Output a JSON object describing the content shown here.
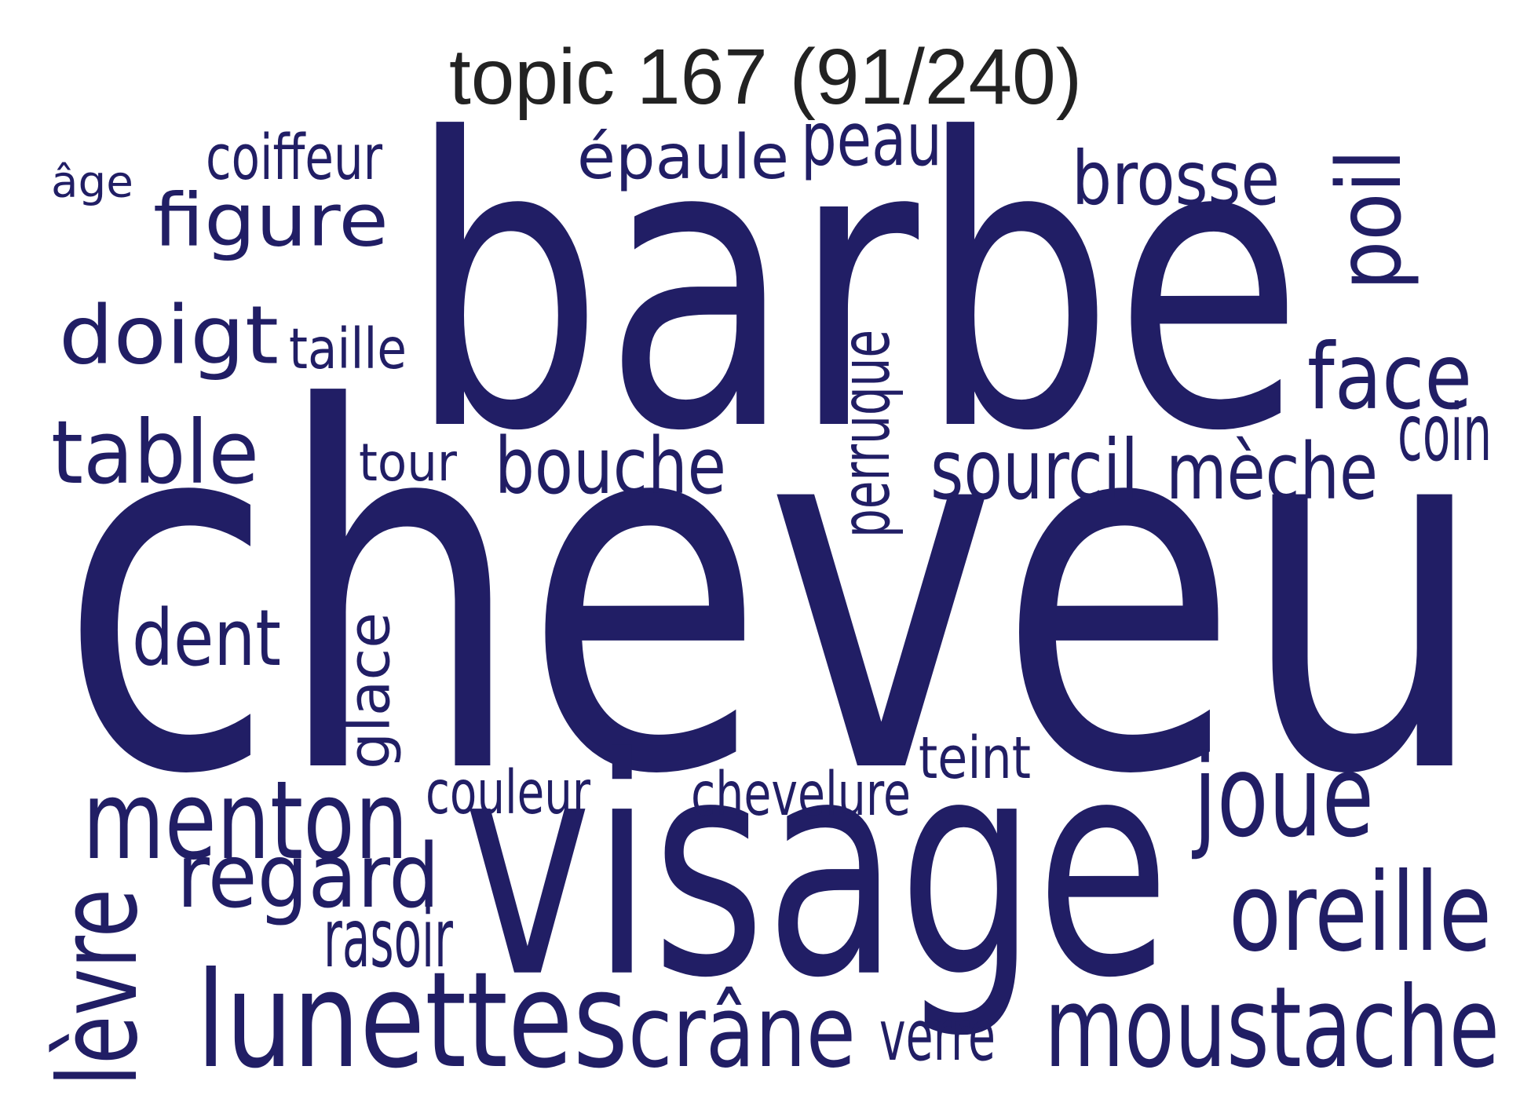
{
  "title": "topic 167 (91/240)",
  "color": "#211e65",
  "words": [
    {
      "text": "cheveu",
      "rotated": false
    },
    {
      "text": "barbe",
      "rotated": false
    },
    {
      "text": "visage",
      "rotated": false
    },
    {
      "text": "lunettes",
      "rotated": false
    },
    {
      "text": "moustache",
      "rotated": false
    },
    {
      "text": "crâne",
      "rotated": false
    },
    {
      "text": "menton",
      "rotated": false
    },
    {
      "text": "regard",
      "rotated": false
    },
    {
      "text": "oreille",
      "rotated": false
    },
    {
      "text": "joue",
      "rotated": false
    },
    {
      "text": "doigt",
      "rotated": false
    },
    {
      "text": "table",
      "rotated": false
    },
    {
      "text": "figure",
      "rotated": false
    },
    {
      "text": "face",
      "rotated": false
    },
    {
      "text": "lèvre",
      "rotated": true
    },
    {
      "text": "sourcil",
      "rotated": false
    },
    {
      "text": "bouche",
      "rotated": false
    },
    {
      "text": "brosse",
      "rotated": false
    },
    {
      "text": "épaule",
      "rotated": false
    },
    {
      "text": "peau",
      "rotated": false
    },
    {
      "text": "mèche",
      "rotated": false
    },
    {
      "text": "dent",
      "rotated": false
    },
    {
      "text": "poil",
      "rotated": true
    },
    {
      "text": "glace",
      "rotated": true
    },
    {
      "text": "perruque",
      "rotated": true
    },
    {
      "text": "couleur",
      "rotated": false
    },
    {
      "text": "chevelure",
      "rotated": false
    },
    {
      "text": "coiffeur",
      "rotated": false
    },
    {
      "text": "rasoir",
      "rotated": false
    },
    {
      "text": "teint",
      "rotated": false
    },
    {
      "text": "taille",
      "rotated": false
    },
    {
      "text": "verre",
      "rotated": false
    },
    {
      "text": "tour",
      "rotated": false
    },
    {
      "text": "coin",
      "rotated": false
    },
    {
      "text": "âge",
      "rotated": false
    }
  ]
}
